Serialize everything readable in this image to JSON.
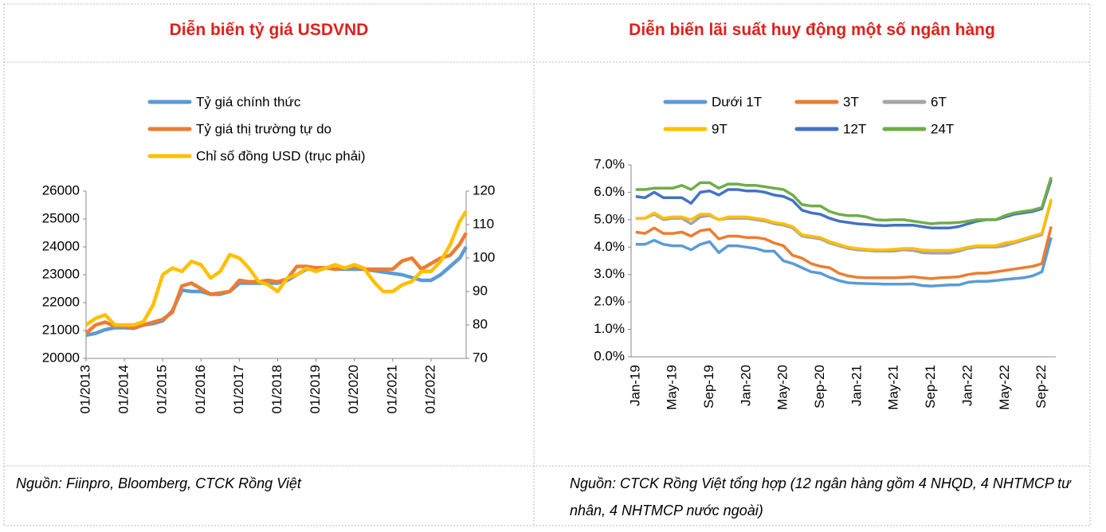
{
  "chart_data": [
    {
      "type": "line",
      "title": "Diễn biến tỷ giá USDVND",
      "source": "Nguồn: Fiinpro, Bloomberg, CTCK Rồng Việt",
      "legend": "top",
      "x": [
        "01/2013",
        "04/2013",
        "07/2013",
        "10/2013",
        "01/2014",
        "04/2014",
        "07/2014",
        "10/2014",
        "01/2015",
        "04/2015",
        "07/2015",
        "10/2015",
        "01/2016",
        "04/2016",
        "07/2016",
        "10/2016",
        "01/2017",
        "04/2017",
        "07/2017",
        "10/2017",
        "01/2018",
        "04/2018",
        "07/2018",
        "10/2018",
        "01/2019",
        "04/2019",
        "07/2019",
        "10/2019",
        "01/2020",
        "04/2020",
        "07/2020",
        "10/2020",
        "01/2021",
        "04/2021",
        "07/2021",
        "10/2021",
        "01/2022",
        "04/2022",
        "07/2022",
        "10/2022",
        "12/2022"
      ],
      "xticks": [
        "01/2013",
        "01/2014",
        "01/2015",
        "01/2016",
        "01/2017",
        "01/2018",
        "01/2019",
        "01/2020",
        "01/2021",
        "01/2022"
      ],
      "ylim": [
        20000,
        26000
      ],
      "yticks": [
        20000,
        21000,
        22000,
        23000,
        24000,
        25000,
        26000
      ],
      "y2lim": [
        70,
        120
      ],
      "y2ticks": [
        70,
        80,
        90,
        100,
        110,
        120
      ],
      "series": [
        {
          "name": "Tỷ giá chính thức",
          "color": "#5b9bd5",
          "values": [
            20830,
            20900,
            21030,
            21100,
            21100,
            21080,
            21200,
            21250,
            21350,
            21700,
            22450,
            22400,
            22400,
            22300,
            22300,
            22400,
            22700,
            22700,
            22700,
            22700,
            22700,
            22800,
            23000,
            23200,
            23200,
            23250,
            23200,
            23200,
            23200,
            23200,
            23150,
            23100,
            23050,
            23000,
            22900,
            22800,
            22800,
            23000,
            23300,
            23600,
            24000
          ]
        },
        {
          "name": "Tỷ giá thị trường tự do",
          "color": "#ed7d31",
          "values": [
            20900,
            21200,
            21300,
            21150,
            21150,
            21100,
            21200,
            21300,
            21400,
            21650,
            22600,
            22700,
            22500,
            22300,
            22350,
            22400,
            22800,
            22750,
            22750,
            22800,
            22750,
            22850,
            23300,
            23300,
            23250,
            23250,
            23200,
            23250,
            23300,
            23200,
            23200,
            23200,
            23200,
            23500,
            23600,
            23200,
            23400,
            23600,
            23700,
            24100,
            24500
          ]
        },
        {
          "name": "Chỉ số đồng USD (trục phải)",
          "color": "#ffc000",
          "axis": "y2",
          "values": [
            80,
            82,
            83,
            80,
            80,
            80,
            81,
            86,
            95,
            97,
            96,
            99,
            98,
            94,
            96,
            101,
            100,
            97,
            93,
            92,
            90,
            94,
            95,
            97,
            96,
            97,
            98,
            97,
            98,
            97,
            93,
            90,
            90,
            92,
            93,
            96,
            96,
            99,
            104,
            111,
            114
          ]
        }
      ]
    },
    {
      "type": "line",
      "title": "Diễn biến lãi suất huy động một số ngân hàng",
      "source": "Nguồn:  CTCK Rồng Việt tổng hợp (12 ngân hàng gồm 4 NHQD, 4 NHTMCP tư nhân, 4 NHTMCP nước ngoài)",
      "legend": "top",
      "categories": [
        "Jan-19",
        null,
        null,
        null,
        "May-19",
        null,
        null,
        null,
        "Sep-19",
        null,
        null,
        null,
        "Jan-20",
        null,
        null,
        null,
        "May-20",
        null,
        null,
        null,
        "Sep-20",
        null,
        null,
        null,
        "Jan-21",
        null,
        null,
        null,
        "May-21",
        null,
        null,
        null,
        "Sep-21",
        null,
        null,
        null,
        "Jan-22",
        null,
        null,
        null,
        "May-22",
        null,
        null,
        null,
        "Sep-22",
        null
      ],
      "ylim": [
        0,
        7
      ],
      "yticks": [
        {
          "value": 0,
          "label": "0.0%"
        },
        {
          "value": 1,
          "label": "1.0%"
        },
        {
          "value": 2,
          "label": "2.0%"
        },
        {
          "value": 3,
          "label": "3.0%"
        },
        {
          "value": 4,
          "label": "4.0%"
        },
        {
          "value": 5,
          "label": "5.0%"
        },
        {
          "value": 6,
          "label": "6.0%"
        },
        {
          "value": 7,
          "label": "7.0%"
        }
      ],
      "series": [
        {
          "name": "Dưới 1T",
          "color": "#5b9bd5",
          "values": [
            4.1,
            4.1,
            4.25,
            4.1,
            4.05,
            4.05,
            3.9,
            4.1,
            4.2,
            3.8,
            4.05,
            4.05,
            4.0,
            3.95,
            3.85,
            3.85,
            3.5,
            3.4,
            3.25,
            3.1,
            3.05,
            2.9,
            2.78,
            2.7,
            2.68,
            2.67,
            2.66,
            2.65,
            2.65,
            2.65,
            2.66,
            2.6,
            2.58,
            2.6,
            2.62,
            2.62,
            2.72,
            2.75,
            2.75,
            2.78,
            2.82,
            2.85,
            2.88,
            2.95,
            3.1,
            4.35
          ]
        },
        {
          "name": "3T",
          "color": "#ed7d31",
          "values": [
            4.55,
            4.5,
            4.7,
            4.5,
            4.5,
            4.55,
            4.4,
            4.6,
            4.65,
            4.3,
            4.4,
            4.4,
            4.35,
            4.35,
            4.3,
            4.15,
            4.05,
            3.7,
            3.6,
            3.4,
            3.3,
            3.25,
            3.05,
            2.95,
            2.9,
            2.88,
            2.88,
            2.88,
            2.88,
            2.9,
            2.92,
            2.88,
            2.85,
            2.88,
            2.9,
            2.92,
            3.0,
            3.05,
            3.05,
            3.1,
            3.15,
            3.2,
            3.25,
            3.3,
            3.4,
            4.75
          ]
        },
        {
          "name": "6T",
          "color": "#a5a5a5",
          "values": [
            5.05,
            5.05,
            5.2,
            5.0,
            5.05,
            5.05,
            4.85,
            5.1,
            5.15,
            5.0,
            5.05,
            5.05,
            5.05,
            5.0,
            4.95,
            4.85,
            4.8,
            4.7,
            4.4,
            4.35,
            4.3,
            4.15,
            4.05,
            3.95,
            3.9,
            3.88,
            3.85,
            3.85,
            3.85,
            3.9,
            3.88,
            3.8,
            3.78,
            3.78,
            3.78,
            3.85,
            3.95,
            4.0,
            4.0,
            4.0,
            4.05,
            4.15,
            4.25,
            4.35,
            4.45,
            5.7
          ]
        },
        {
          "name": "9T",
          "color": "#ffc000",
          "values": [
            5.05,
            5.05,
            5.25,
            5.05,
            5.1,
            5.1,
            5.0,
            5.2,
            5.2,
            5.0,
            5.1,
            5.1,
            5.1,
            5.05,
            5.0,
            4.9,
            4.85,
            4.75,
            4.45,
            4.4,
            4.35,
            4.2,
            4.1,
            4.0,
            3.95,
            3.92,
            3.9,
            3.9,
            3.92,
            3.95,
            3.95,
            3.9,
            3.88,
            3.88,
            3.88,
            3.92,
            4.0,
            4.05,
            4.05,
            4.05,
            4.15,
            4.2,
            4.3,
            4.4,
            4.5,
            5.75
          ]
        },
        {
          "name": "12T",
          "color": "#4472c4",
          "values": [
            5.85,
            5.8,
            6.0,
            5.8,
            5.8,
            5.8,
            5.6,
            6.0,
            6.05,
            5.9,
            6.1,
            6.1,
            6.05,
            6.05,
            6.0,
            5.9,
            5.85,
            5.7,
            5.35,
            5.25,
            5.2,
            5.05,
            4.95,
            4.9,
            4.85,
            4.83,
            4.8,
            4.78,
            4.8,
            4.8,
            4.8,
            4.75,
            4.7,
            4.7,
            4.7,
            4.75,
            4.85,
            4.95,
            5.0,
            5.0,
            5.1,
            5.2,
            5.25,
            5.3,
            5.4,
            6.45
          ]
        },
        {
          "name": "24T",
          "color": "#70ad47",
          "values": [
            6.1,
            6.1,
            6.15,
            6.15,
            6.15,
            6.25,
            6.1,
            6.35,
            6.35,
            6.15,
            6.3,
            6.3,
            6.25,
            6.25,
            6.2,
            6.15,
            6.1,
            5.9,
            5.55,
            5.5,
            5.5,
            5.3,
            5.2,
            5.15,
            5.15,
            5.1,
            5.0,
            4.98,
            5.0,
            5.0,
            4.95,
            4.9,
            4.85,
            4.88,
            4.88,
            4.9,
            4.95,
            5.0,
            5.0,
            5.0,
            5.15,
            5.25,
            5.3,
            5.35,
            5.45,
            6.55
          ]
        }
      ]
    }
  ]
}
